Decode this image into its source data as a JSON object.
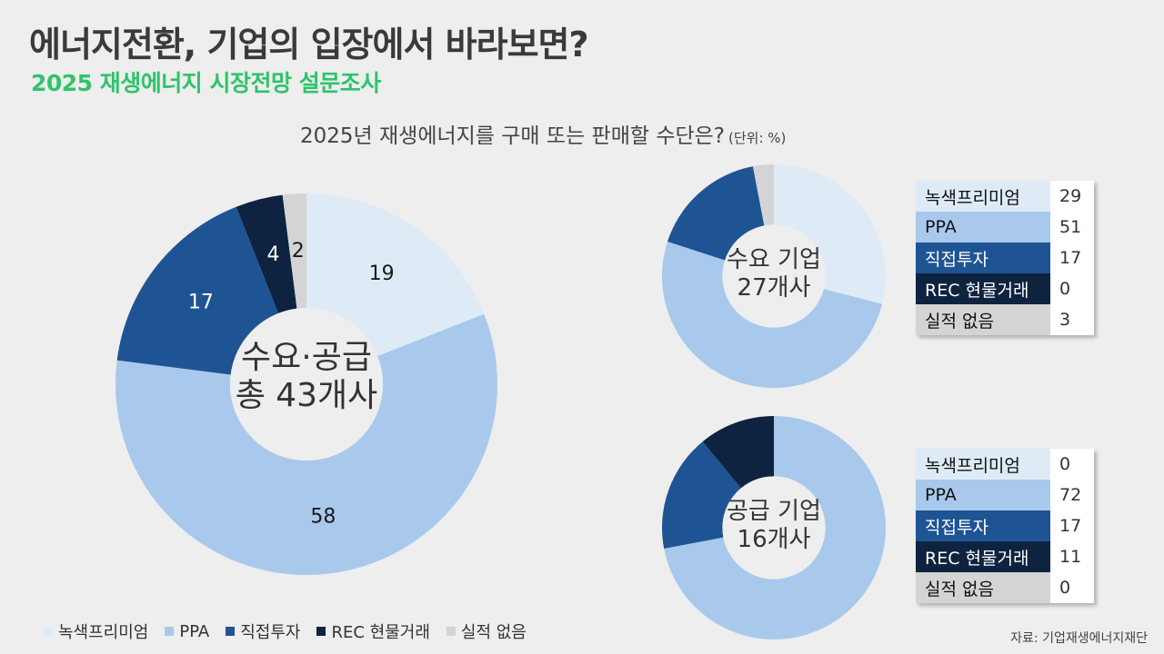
{
  "header": {
    "title": "에너지전환, 기업의 입장에서 바라보면?",
    "subtitle": "2025 재생에너지 시장전망 설문조사"
  },
  "question": {
    "text": "2025년 재생에너지를 구매 또는 판매할 수단은?",
    "unit": "(단위: %)"
  },
  "colors": {
    "green_premium": "#deebf7",
    "ppa": "#a9c9ec",
    "direct_invest": "#1f5494",
    "rec": "#0d2340",
    "none": "#d4d4d4",
    "accent": "#2fc46b"
  },
  "categories": [
    "녹색프리미엄",
    "PPA",
    "직접투자",
    "REC 현물거래",
    "실적 없음"
  ],
  "chart_data": [
    {
      "type": "pie",
      "center_label": [
        "수요·공급",
        "총 43개사"
      ],
      "categories": [
        "녹색프리미엄",
        "PPA",
        "직접투자",
        "REC 현물거래",
        "실적 없음"
      ],
      "values": [
        19,
        58,
        17,
        4,
        2
      ]
    },
    {
      "type": "pie",
      "center_label": [
        "수요 기업",
        "27개사"
      ],
      "categories": [
        "녹색프리미엄",
        "PPA",
        "직접투자",
        "REC 현물거래",
        "실적 없음"
      ],
      "values": [
        29,
        51,
        17,
        0,
        3
      ]
    },
    {
      "type": "pie",
      "center_label": [
        "공급 기업",
        "16개사"
      ],
      "categories": [
        "녹색프리미엄",
        "PPA",
        "직접투자",
        "REC 현물거래",
        "실적 없음"
      ],
      "values": [
        0,
        72,
        17,
        11,
        0
      ]
    }
  ],
  "source": "자료: 기업재생에너지재단"
}
